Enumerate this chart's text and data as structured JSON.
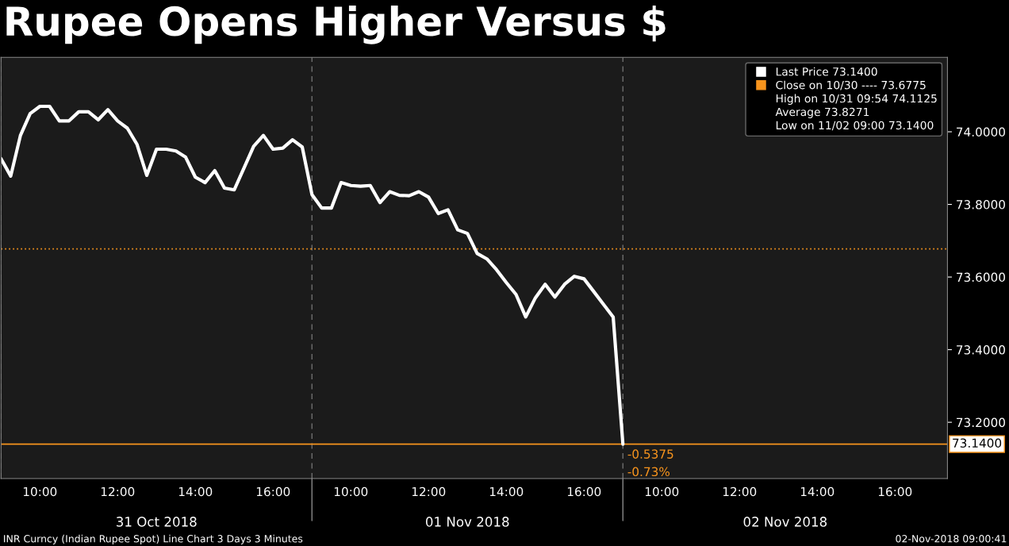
{
  "chart_data": {
    "type": "line",
    "title": "Rupee Opens Higher Versus $",
    "categories": [
      null,
      null,
      null,
      null,
      "10:00",
      null,
      null,
      null,
      null,
      null,
      null,
      null,
      "12:00",
      null,
      null,
      null,
      null,
      null,
      null,
      null,
      "14:00",
      null,
      null,
      null,
      null,
      null,
      null,
      null,
      "16:00",
      null,
      null,
      null,
      null,
      null,
      null,
      null,
      "10:00",
      null,
      null,
      null,
      null,
      null,
      null,
      null,
      "12:00",
      null,
      null,
      null,
      null,
      null,
      null,
      null,
      "14:00",
      null,
      null,
      null,
      null,
      null,
      null,
      null,
      "16:00",
      null,
      null,
      null,
      null,
      null,
      null,
      null,
      "10:00",
      null,
      null,
      null,
      null,
      null,
      null,
      null,
      "12:00",
      null,
      null,
      null,
      null,
      null,
      null,
      null,
      "14:00",
      null,
      null,
      null,
      null,
      null,
      null,
      null,
      "16:00",
      null,
      null,
      null,
      null,
      null
    ],
    "series": [
      {
        "name": "Last Price 73.1400",
        "color": "#ffffff",
        "values": [
          73.926,
          73.878,
          73.99,
          74.05,
          74.07,
          74.07,
          74.03,
          74.03,
          74.055,
          74.055,
          74.033,
          74.061,
          74.03,
          74.01,
          73.965,
          73.88,
          73.952,
          73.952,
          73.947,
          73.93,
          73.875,
          73.86,
          73.893,
          73.845,
          73.84,
          73.9,
          73.96,
          73.99,
          73.952,
          73.955,
          73.978,
          73.958,
          73.827,
          73.79,
          73.79,
          73.86,
          73.852,
          73.85,
          73.852,
          73.805,
          73.835,
          73.825,
          73.824,
          73.835,
          73.82,
          73.775,
          73.785,
          73.73,
          73.72,
          73.665,
          73.65,
          73.62,
          73.585,
          73.552,
          73.49,
          73.543,
          73.58,
          73.545,
          73.58,
          73.602,
          73.595,
          73.56,
          73.525,
          73.49,
          73.14,
          null,
          null,
          null,
          null,
          null,
          null,
          null,
          null,
          null,
          null,
          null,
          null,
          null,
          null,
          null,
          null,
          null,
          null,
          null,
          null,
          null,
          null,
          null,
          null,
          null,
          null,
          null,
          null,
          null,
          null,
          null,
          null,
          null
        ]
      }
    ],
    "ylim": [
      73.045,
      74.205
    ],
    "yticks": [
      {
        "value": 73.2,
        "label": "73.2000"
      },
      {
        "value": 73.4,
        "label": "73.4000"
      },
      {
        "value": 73.6,
        "label": "73.6000"
      },
      {
        "value": 73.8,
        "label": "73.8000"
      },
      {
        "value": 74.0,
        "label": "74.0000"
      }
    ],
    "ref_lines": [
      {
        "axis": "y",
        "value": 73.6775,
        "label": "Close on 10/30 ---- 73.6775",
        "color": "#f7941d",
        "line_style": "dotted"
      },
      {
        "axis": "y",
        "value": 73.14,
        "label": "73.1400",
        "color": "#f7941d",
        "line_style": "solid"
      }
    ],
    "annotations": [
      "31 Oct 2018",
      "01 Nov 2018",
      "02 Nov 2018",
      "High on 10/31 09:54 74.1125",
      "Average 73.8271",
      "Low on 11/02 09:00 73.1400",
      "INR Curncy (Indian Rupee Spot) Line Chart 3 Days 3 Minutes",
      "02-Nov-2018 09:00:41",
      "-0.5375",
      "-0.73%"
    ],
    "legend": "top right",
    "grid": false,
    "line_style": "solid",
    "marker": "none"
  }
}
